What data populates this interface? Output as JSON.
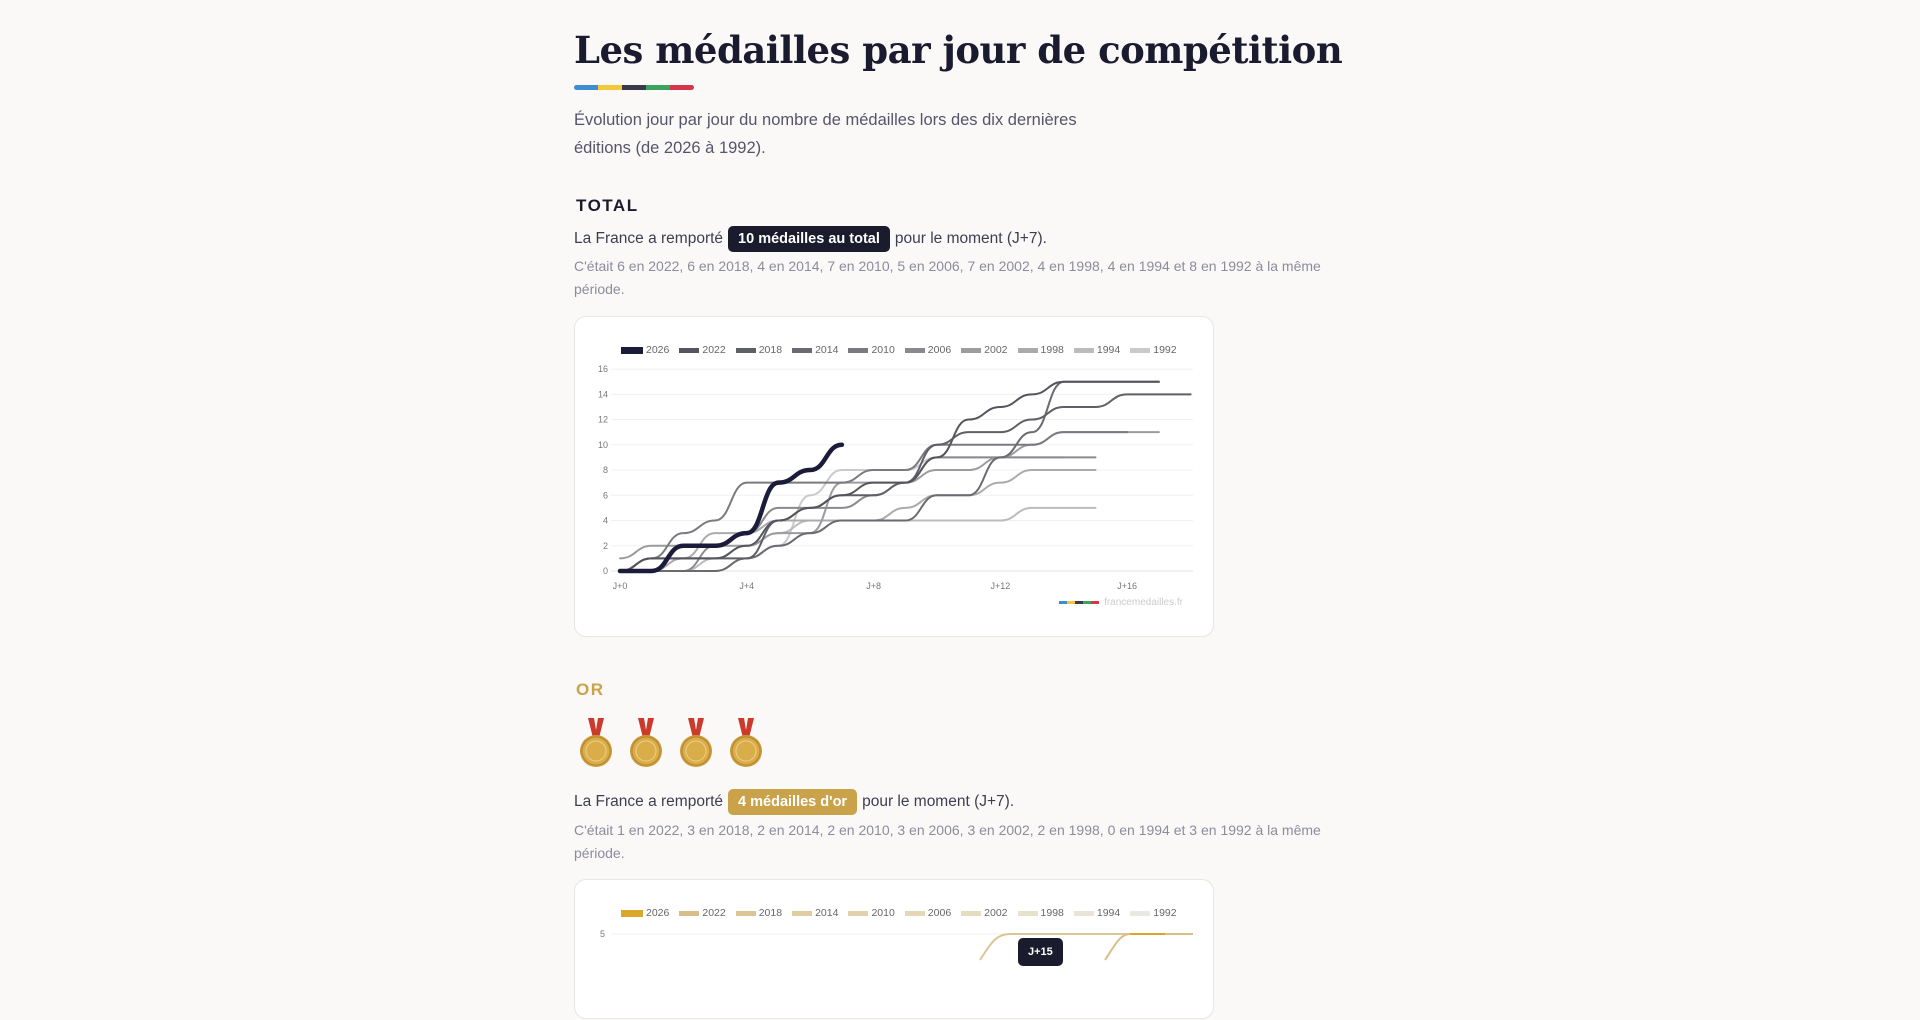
{
  "page": {
    "title": "Les médailles par jour de compétition",
    "intro": "Évolution jour par jour du nombre de médailles lors des dix dernières éditions (de 2026 à 1992).",
    "ring_colors": [
      "#3b8fd0",
      "#f2c93a",
      "#3a3a48",
      "#3aa35c",
      "#d6364a"
    ]
  },
  "total": {
    "label": "TOTAL",
    "prefix": "La France a remporté",
    "badge": "10 médailles au total",
    "suffix": "pour le moment (J+7).",
    "comparison": "C'était 6 en 2022, 6 en 2018, 4 en 2014, 7 en 2010, 5 en 2006, 7 en 2002, 4 en 1998, 4 en 1994 et 8 en 1992 à la même période.",
    "badge_color": "#1b1b2e",
    "credit": "francemedailles.fr"
  },
  "gold": {
    "label": "OR",
    "medal_count": 4,
    "prefix": "La France a remporté",
    "badge": "4 médailles d'or",
    "suffix": "pour le moment (J+7).",
    "comparison": "C'était 1 en 2022, 3 en 2018, 2 en 2014, 2 en 2010, 3 en 2006, 3 en 2002, 2 en 1998, 0 en 1994 et 3 en 1992 à la même période.",
    "badge_color": "#c9a24a",
    "label_color": "#c9a24a",
    "tooltip": "J+15"
  },
  "chart_data": [
    {
      "type": "line",
      "title": "Total médailles par jour",
      "xlabel": "",
      "ylabel": "",
      "x": [
        "J+0",
        "J+1",
        "J+2",
        "J+3",
        "J+4",
        "J+5",
        "J+6",
        "J+7",
        "J+8",
        "J+9",
        "J+10",
        "J+11",
        "J+12",
        "J+13",
        "J+14",
        "J+15",
        "J+16",
        "J+17",
        "J+18"
      ],
      "x_ticks": [
        "J+0",
        "J+4",
        "J+8",
        "J+12",
        "J+16"
      ],
      "y_ticks": [
        0,
        2,
        4,
        6,
        8,
        10,
        12,
        14,
        16
      ],
      "ylim": [
        0,
        16
      ],
      "grid": true,
      "legend_position": "top",
      "series": [
        {
          "name": "2026",
          "color": "#1b1b3a",
          "width": 4.5,
          "values": [
            0,
            0,
            2,
            2,
            3,
            7,
            8,
            10
          ]
        },
        {
          "name": "2022",
          "color": "#55555f",
          "width": 2,
          "values": [
            0,
            1,
            1,
            1,
            2,
            4,
            5,
            6,
            7,
            7,
            9,
            12,
            13,
            14,
            15,
            15,
            15,
            15
          ]
        },
        {
          "name": "2018",
          "color": "#5f5f66",
          "width": 2,
          "values": [
            0,
            1,
            1,
            1,
            1,
            4,
            5,
            6,
            6,
            7,
            10,
            11,
            11,
            12,
            13,
            13,
            14,
            14,
            14
          ]
        },
        {
          "name": "2014",
          "color": "#6a6a70",
          "width": 2,
          "values": [
            0,
            0,
            0,
            0,
            1,
            2,
            3,
            4,
            4,
            4,
            6,
            6,
            9,
            11,
            15,
            15,
            15,
            15
          ]
        },
        {
          "name": "2010",
          "color": "#7a7a80",
          "width": 2,
          "values": [
            0,
            1,
            3,
            4,
            7,
            7,
            7,
            7,
            8,
            8,
            10,
            10,
            10,
            10,
            11,
            11,
            11
          ]
        },
        {
          "name": "2006",
          "color": "#8a8a8e",
          "width": 2,
          "values": [
            0,
            0,
            0,
            2,
            3,
            5,
            5,
            5,
            6,
            7,
            9,
            9,
            9,
            9,
            9,
            9
          ]
        },
        {
          "name": "2002",
          "color": "#9c9c9e",
          "width": 2,
          "values": [
            1,
            2,
            2,
            2,
            2,
            3,
            3,
            7,
            7,
            7,
            8,
            8,
            9,
            10,
            11,
            11,
            11,
            11
          ]
        },
        {
          "name": "1998",
          "color": "#ababad",
          "width": 2,
          "values": [
            0,
            0,
            1,
            3,
            3,
            4,
            4,
            4,
            4,
            5,
            6,
            6,
            7,
            8,
            8,
            8
          ]
        },
        {
          "name": "1994",
          "color": "#bcbcbe",
          "width": 2,
          "values": [
            0,
            0,
            0,
            1,
            2,
            3,
            4,
            4,
            4,
            4,
            4,
            4,
            4,
            5,
            5,
            5
          ]
        },
        {
          "name": "1992",
          "color": "#cacacc",
          "width": 2,
          "values": [
            0,
            0,
            0,
            0,
            1,
            2,
            6,
            8,
            8,
            8,
            9,
            9,
            9,
            9,
            9
          ]
        }
      ]
    },
    {
      "type": "line",
      "title": "Médailles d'or par jour",
      "y_ticks": [
        5
      ],
      "grid": true,
      "legend_position": "top",
      "series": [
        {
          "name": "2026",
          "color": "#dca62a"
        },
        {
          "name": "2022",
          "color": "#d8bf8a"
        },
        {
          "name": "2018",
          "color": "#dcc594"
        },
        {
          "name": "2014",
          "color": "#e0cc9f"
        },
        {
          "name": "2010",
          "color": "#e2d2ac"
        },
        {
          "name": "2006",
          "color": "#e4d7b6"
        },
        {
          "name": "2002",
          "color": "#e5dcc2"
        },
        {
          "name": "1998",
          "color": "#e7e2ce"
        },
        {
          "name": "1994",
          "color": "#e8e5d8"
        },
        {
          "name": "1992",
          "color": "#eae8e2"
        }
      ]
    }
  ]
}
